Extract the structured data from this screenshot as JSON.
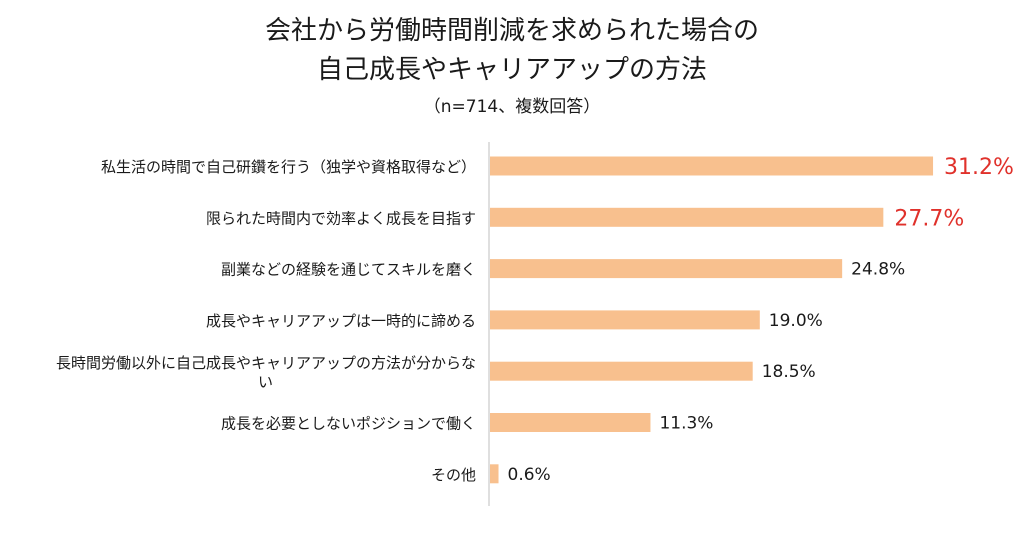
{
  "chart_data": {
    "type": "bar",
    "orientation": "horizontal",
    "title": [
      "会社から労働時間削減を求められた場合の",
      "自己成長やキャリアアップの方法"
    ],
    "subtitle": "（n=714、複数回答）",
    "categories": [
      "私生活の時間で自己研鑽を行う（独学や資格取得など）",
      "限られた時間内で効率よく成長を目指す",
      "副業などの経験を通じてスキルを磨く",
      "成長やキャリアアップは一時的に諦める",
      "長時間労働以外に自己成長やキャリアアップの方法が分からない",
      "成長を必要としないポジションで働く",
      "その他"
    ],
    "values": [
      31.2,
      27.7,
      24.8,
      19.0,
      18.5,
      11.3,
      0.6
    ],
    "value_labels": [
      "31.2%",
      "27.7%",
      "24.8%",
      "19.0%",
      "18.5%",
      "11.3%",
      "0.6%"
    ],
    "highlighted": [
      true,
      true,
      false,
      false,
      false,
      false,
      false
    ],
    "xlim": [
      0,
      35
    ],
    "bar_color": "#f8c08e",
    "highlight_color": "#e0312b",
    "label_color": "#1a1a1a",
    "axis_color": "#bfbfbf",
    "grid": false,
    "legend": "none"
  }
}
